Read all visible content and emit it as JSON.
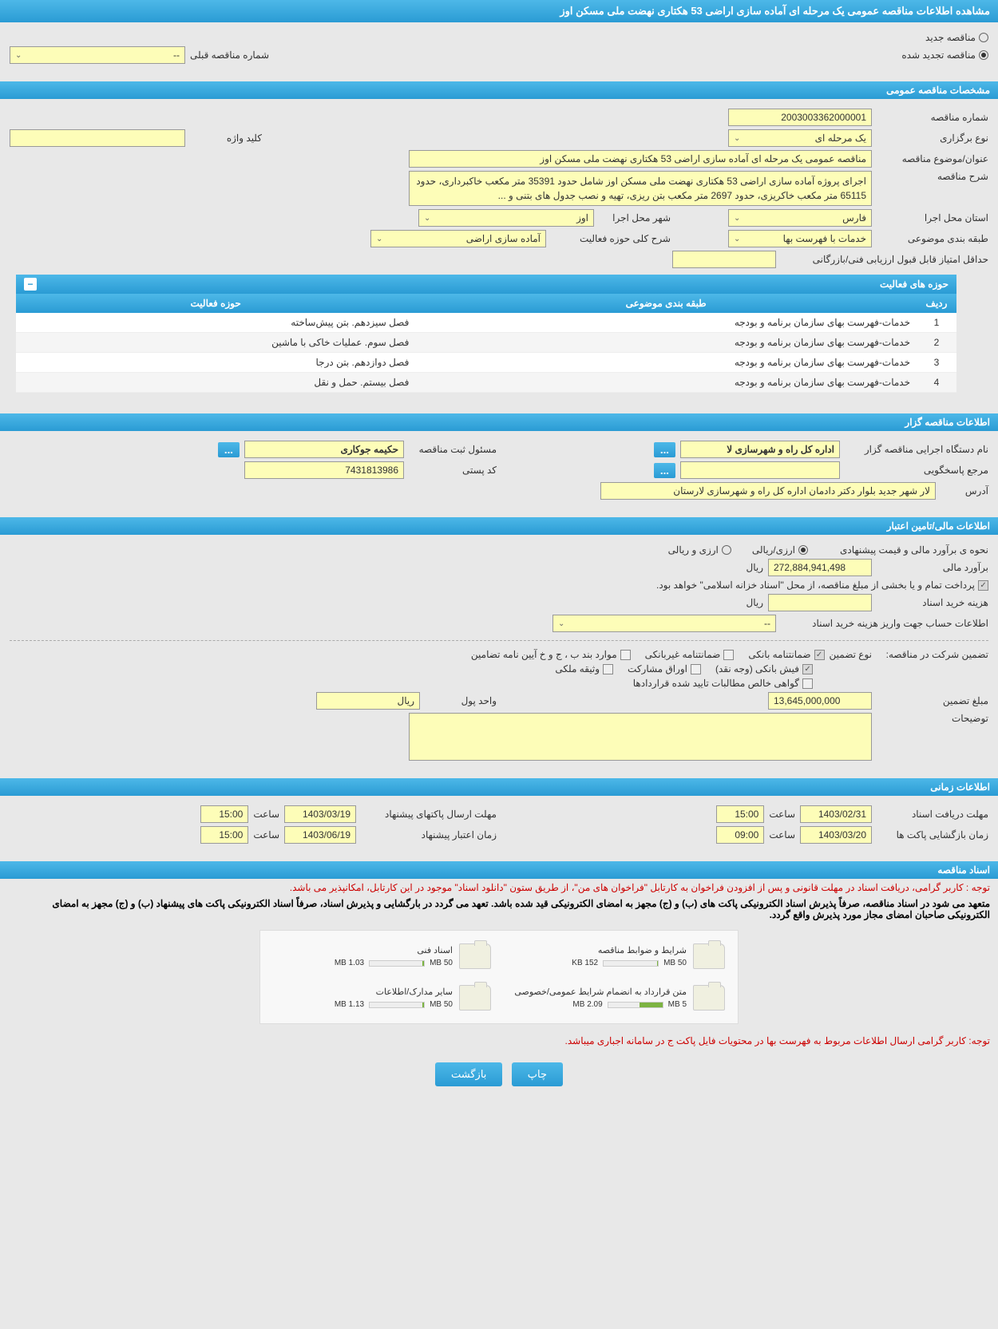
{
  "page_title": "مشاهده اطلاعات مناقصه عمومی یک مرحله ای آماده سازی اراضی 53 هکتاری نهضت ملی مسکن اوز",
  "tender_type": {
    "new_label": "مناقصه جدید",
    "renewed_label": "مناقصه تجدید شده",
    "prev_number_label": "شماره مناقصه قبلی",
    "prev_number_value": "--"
  },
  "sections": {
    "general": "مشخصات مناقصه عمومی",
    "organizer": "اطلاعات مناقصه گزار",
    "financial": "اطلاعات مالی/تامین اعتبار",
    "timing": "اطلاعات زمانی",
    "documents": "اسناد مناقصه"
  },
  "general": {
    "number_label": "شماره مناقصه",
    "number_value": "2003003362000001",
    "holding_type_label": "نوع برگزاری",
    "holding_type_value": "یک مرحله ای",
    "keyword_label": "کلید واژه",
    "keyword_value": "",
    "title_label": "عنوان/موضوع مناقصه",
    "title_value": "مناقصه عمومی یک مرحله ای آماده سازی اراضی 53 هکتاری نهضت ملی مسکن اوز",
    "desc_label": "شرح مناقصه",
    "desc_value": "اجرای پروژه آماده سازی اراضی 53 هکتاری نهضت ملی مسکن اوز شامل حدود 35391 متر مکعب خاکبرداری، حدود 65115 متر مکعب خاکریزی، حدود 2697 متر مکعب بتن ریزی، تهیه و نصب جدول های بتنی و ...",
    "province_label": "استان محل اجرا",
    "province_value": "فارس",
    "city_label": "شهر محل اجرا",
    "city_value": "اوز",
    "subject_class_label": "طبقه بندی موضوعی",
    "subject_class_value": "خدمات با فهرست بها",
    "activity_scope_label": "شرح کلی حوزه فعالیت",
    "activity_scope_value": "آماده سازی اراضی",
    "min_score_label": "حداقل امتیاز قابل قبول ارزیابی فنی/بازرگانی",
    "min_score_value": ""
  },
  "activity_table": {
    "title": "حوزه های فعالیت",
    "col_row": "ردیف",
    "col_subject": "طبقه بندی موضوعی",
    "col_activity": "حوزه فعالیت",
    "rows": [
      {
        "n": "1",
        "subject": "خدمات-فهرست بهای سازمان برنامه و بودجه",
        "activity": "فصل سیزدهم. بتن پیش‌ساخته"
      },
      {
        "n": "2",
        "subject": "خدمات-فهرست بهای سازمان برنامه و بودجه",
        "activity": "فصل سوم. عملیات خاکی با ماشین"
      },
      {
        "n": "3",
        "subject": "خدمات-فهرست بهای سازمان برنامه و بودجه",
        "activity": "فصل دوازدهم. بتن درجا"
      },
      {
        "n": "4",
        "subject": "خدمات-فهرست بهای سازمان برنامه و بودجه",
        "activity": "فصل بیستم. حمل و نقل"
      }
    ]
  },
  "organizer": {
    "exec_label": "نام دستگاه اجرایی مناقصه گزار",
    "exec_value": "اداره کل راه و شهرسازی لا",
    "registrar_label": "مسئول ثبت مناقصه",
    "registrar_value": "حکیمه جوکاری",
    "contact_label": "مرجع پاسخگویی",
    "contact_value": "",
    "postal_label": "کد پستی",
    "postal_value": "7431813986",
    "address_label": "آدرس",
    "address_value": "لار شهر جدید بلوار دکتر دادمان اداره کل راه و شهرسازی لارستان"
  },
  "financial": {
    "estimate_method_label": "نحوه ی برآورد مالی و قیمت پیشنهادی",
    "opt_rial": "ارزی/ریالی",
    "opt_currency": "ارزی و ریالی",
    "estimate_label": "برآورد مالی",
    "estimate_value": "272,884,941,498",
    "currency_unit": "ریال",
    "payment_note": "پرداخت تمام و یا بخشی از مبلغ مناقصه، از محل \"اسناد خزانه اسلامی\" خواهد بود.",
    "doc_cost_label": "هزینه خرید اسناد",
    "doc_cost_unit": "ریال",
    "account_label": "اطلاعات حساب جهت واریز هزینه خرید اسناد",
    "account_value": "--",
    "guarantee_label": "تضمین شرکت در مناقصه:",
    "guarantee_type_label": "نوع تضمین",
    "chk_bank": "ضمانتنامه بانکی",
    "chk_nonbank": "ضمانتنامه غیربانکی",
    "chk_clauses": "موارد بند ب ، ج و خ آیین نامه تضامین",
    "chk_cash": "فیش بانکی (وجه نقد)",
    "chk_securities": "اوراق مشارکت",
    "chk_property": "وثیقه ملکی",
    "chk_receivables": "گواهی خالص مطالبات تایید شده قراردادها",
    "guarantee_amount_label": "مبلغ تضمین",
    "guarantee_amount_value": "13,645,000,000",
    "unit_label": "واحد پول",
    "unit_value": "ریال",
    "notes_label": "توضیحات"
  },
  "timing": {
    "receive_deadline_label": "مهلت دریافت اسناد",
    "receive_deadline_date": "1403/02/31",
    "receive_deadline_time": "15:00",
    "send_deadline_label": "مهلت ارسال پاکتهای پیشنهاد",
    "send_deadline_date": "1403/03/19",
    "send_deadline_time": "15:00",
    "opening_label": "زمان بازگشایی پاکت ها",
    "opening_date": "1403/03/20",
    "opening_time": "09:00",
    "validity_label": "زمان اعتبار پیشنهاد",
    "validity_date": "1403/06/19",
    "validity_time": "15:00",
    "time_label": "ساعت"
  },
  "documents": {
    "notice1": "توجه : کاربر گرامی، دریافت اسناد در مهلت قانونی و پس از افزودن فراخوان به کارتابل \"فراخوان های من\"، از طریق ستون \"دانلود اسناد\" موجود در این کارتابل، امکانپذیر می باشد.",
    "notice2": "متعهد می شود در اسناد مناقصه، صرفاً پذیرش اسناد الکترونیکی پاکت های (ب) و (ج) مجهز به امضای الکترونیکی قید شده باشد. تعهد می گردد در بارگشایی و پذیرش اسناد، صرفاً اسناد الکترونیکی پاکت های پیشنهاد (ب) و (ج) مجهز به امضای الکترونیکی صاحبان امضای مجاز مورد پذیرش واقع گردد.",
    "items": [
      {
        "title": "شرایط و ضوابط مناقصه",
        "used": "152 KB",
        "total": "50 MB",
        "pct": 1
      },
      {
        "title": "اسناد فنی",
        "used": "1.03 MB",
        "total": "50 MB",
        "pct": 3
      },
      {
        "title": "متن قرارداد به انضمام شرایط عمومی/خصوصی",
        "used": "2.09 MB",
        "total": "5 MB",
        "pct": 42
      },
      {
        "title": "سایر مدارک/اطلاعات",
        "used": "1.13 MB",
        "total": "50 MB",
        "pct": 3
      }
    ],
    "notice3": "توجه: کاربر گرامی ارسال اطلاعات مربوط به فهرست بها در محتویات فایل پاکت ج در سامانه اجباری میباشد."
  },
  "buttons": {
    "print": "چاپ",
    "back": "بازگشت"
  },
  "colors": {
    "header_gradient_top": "#4db8e8",
    "header_gradient_bottom": "#2a9bd4",
    "yellow_field": "#fdfdb8",
    "background": "#e8e8e8",
    "notice_red": "#cc0000"
  }
}
